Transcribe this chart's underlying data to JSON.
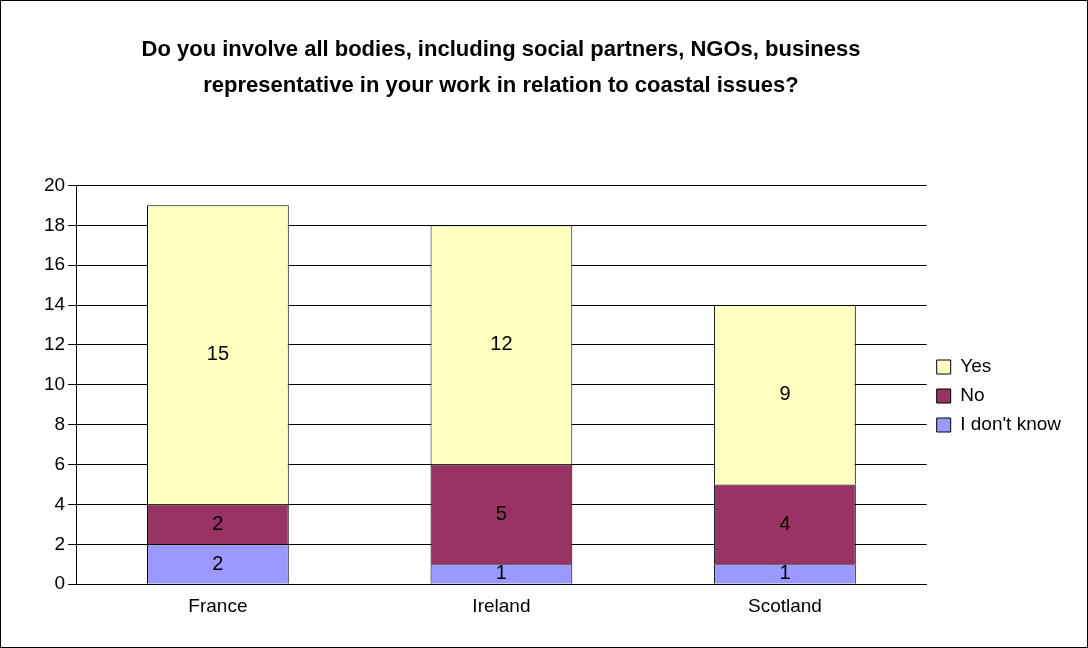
{
  "chart_data": {
    "type": "bar",
    "title": "Do you involve all bodies, including social partners, NGOs, business representative in your work in relation to coastal issues?",
    "categories": [
      "France",
      "Ireland",
      "Scotland"
    ],
    "series": [
      {
        "name": "I don't know",
        "color": "#9999ff",
        "values": [
          2,
          1,
          1
        ]
      },
      {
        "name": "No",
        "color": "#993366",
        "values": [
          2,
          5,
          4
        ]
      },
      {
        "name": "Yes",
        "color": "#ffffc0",
        "values": [
          15,
          12,
          9
        ]
      }
    ],
    "stacked": true,
    "ylim": [
      0,
      20
    ],
    "yticks": [
      0,
      2,
      4,
      6,
      8,
      10,
      12,
      14,
      16,
      18,
      20
    ],
    "grid": "y",
    "legend": "right",
    "data_labels": true
  }
}
